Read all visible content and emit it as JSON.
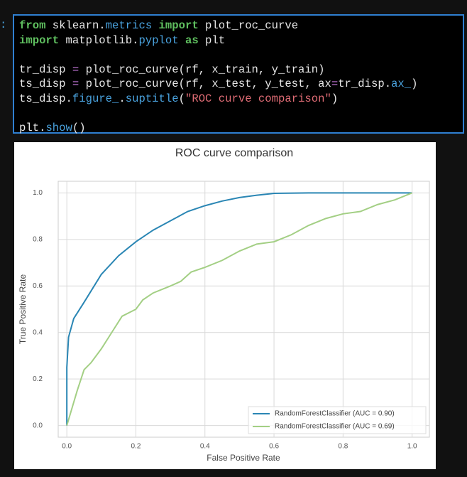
{
  "notebook": {
    "prompt": ":",
    "code": {
      "lines": [
        [
          {
            "text": "from",
            "color": "#5fbf5f",
            "bold": true
          },
          {
            "text": " sklearn.",
            "color": "#e8e8e8"
          },
          {
            "text": "metrics",
            "color": "#4aa3df"
          },
          {
            "text": " ",
            "color": "#e8e8e8"
          },
          {
            "text": "import",
            "color": "#5fbf5f",
            "bold": true
          },
          {
            "text": " plot_roc_curve",
            "color": "#e8e8e8"
          }
        ],
        [
          {
            "text": "import",
            "color": "#5fbf5f",
            "bold": true
          },
          {
            "text": " matplotlib.",
            "color": "#e8e8e8"
          },
          {
            "text": "pyplot",
            "color": "#4aa3df"
          },
          {
            "text": " ",
            "color": "#e8e8e8"
          },
          {
            "text": "as",
            "color": "#5fbf5f",
            "bold": true
          },
          {
            "text": " plt",
            "color": "#e8e8e8"
          }
        ],
        [],
        [
          {
            "text": "tr_disp ",
            "color": "#e8e8e8"
          },
          {
            "text": "=",
            "color": "#c678dd"
          },
          {
            "text": " plot_roc_curve(rf, x_train, y_train)",
            "color": "#e8e8e8"
          }
        ],
        [
          {
            "text": "ts_disp ",
            "color": "#e8e8e8"
          },
          {
            "text": "=",
            "color": "#c678dd"
          },
          {
            "text": " plot_roc_curve(rf, x_test, y_test, ax",
            "color": "#e8e8e8"
          },
          {
            "text": "=",
            "color": "#c678dd"
          },
          {
            "text": "tr_disp.",
            "color": "#e8e8e8"
          },
          {
            "text": "ax_",
            "color": "#4aa3df"
          },
          {
            "text": ")",
            "color": "#e8e8e8"
          }
        ],
        [
          {
            "text": "ts_disp.",
            "color": "#e8e8e8"
          },
          {
            "text": "figure_",
            "color": "#4aa3df"
          },
          {
            "text": ".",
            "color": "#e8e8e8"
          },
          {
            "text": "suptitle",
            "color": "#4aa3df"
          },
          {
            "text": "(",
            "color": "#e8e8e8"
          },
          {
            "text": "\"ROC curve comparison\"",
            "color": "#e06c75"
          },
          {
            "text": ")",
            "color": "#e8e8e8"
          }
        ],
        [],
        [
          {
            "text": "plt.",
            "color": "#e8e8e8"
          },
          {
            "text": "show",
            "color": "#4aa3df"
          },
          {
            "text": "()",
            "color": "#e8e8e8"
          }
        ]
      ]
    }
  },
  "chart_data": {
    "type": "line",
    "title": "ROC curve comparison",
    "xlabel": "False Positive Rate",
    "ylabel": "True Positive Rate",
    "xlim": [
      -0.025,
      1.05
    ],
    "ylim": [
      -0.05,
      1.05
    ],
    "xticks": [
      {
        "value": 0,
        "label": "0.0"
      },
      {
        "value": 0.2,
        "label": "0.2"
      },
      {
        "value": 0.4,
        "label": "0.4"
      },
      {
        "value": 0.6,
        "label": "0.6"
      },
      {
        "value": 0.8,
        "label": "0.8"
      },
      {
        "value": 1,
        "label": "1.0"
      }
    ],
    "yticks": [
      {
        "value": 0,
        "label": "0.0"
      },
      {
        "value": 0.2,
        "label": "0.2"
      },
      {
        "value": 0.4,
        "label": "0.4"
      },
      {
        "value": 0.6,
        "label": "0.6"
      },
      {
        "value": 0.8,
        "label": "0.8"
      },
      {
        "value": 1,
        "label": "1.0"
      }
    ],
    "grid": true,
    "legend": "lower right",
    "series": [
      {
        "name": "RandomForestClassifier (AUC = 0.90)",
        "color": "#2a86b4",
        "x": [
          0,
          0,
          0.005,
          0.02,
          0.05,
          0.1,
          0.15,
          0.2,
          0.25,
          0.3,
          0.35,
          0.4,
          0.45,
          0.5,
          0.55,
          0.6,
          0.7,
          1
        ],
        "values": [
          0,
          0.25,
          0.38,
          0.46,
          0.53,
          0.65,
          0.73,
          0.79,
          0.84,
          0.88,
          0.92,
          0.945,
          0.965,
          0.98,
          0.99,
          0.998,
          1,
          1
        ]
      },
      {
        "name": "RandomForestClassifier (AUC = 0.69)",
        "color": "#a3cf84",
        "x": [
          0,
          0.01,
          0.03,
          0.05,
          0.07,
          0.1,
          0.13,
          0.16,
          0.2,
          0.22,
          0.25,
          0.3,
          0.33,
          0.36,
          0.4,
          0.45,
          0.5,
          0.55,
          0.6,
          0.65,
          0.7,
          0.75,
          0.8,
          0.85,
          0.9,
          0.95,
          1
        ],
        "values": [
          0,
          0.05,
          0.15,
          0.24,
          0.27,
          0.33,
          0.4,
          0.47,
          0.5,
          0.54,
          0.57,
          0.6,
          0.62,
          0.66,
          0.68,
          0.71,
          0.75,
          0.78,
          0.79,
          0.82,
          0.86,
          0.89,
          0.91,
          0.92,
          0.95,
          0.97,
          1
        ]
      }
    ]
  }
}
